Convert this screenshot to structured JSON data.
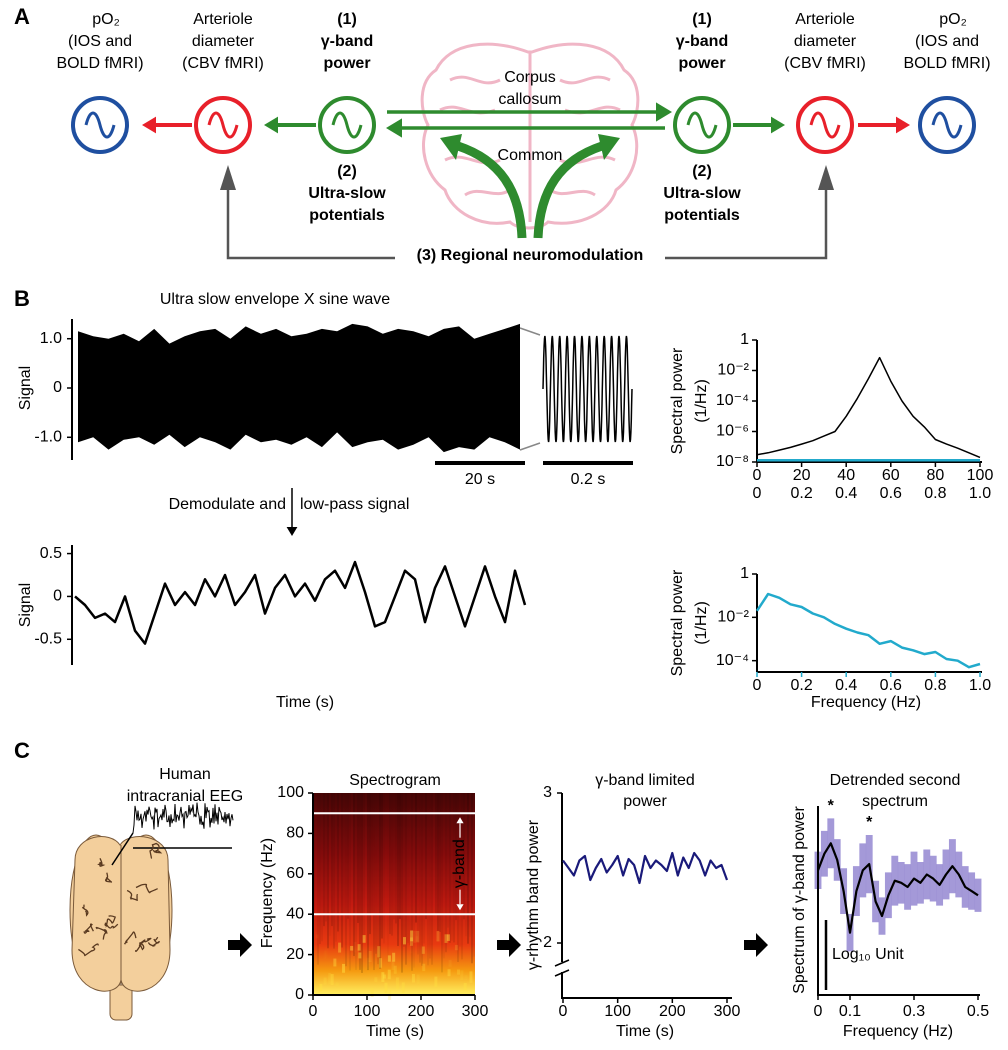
{
  "panel_labels": [
    "A",
    "B",
    "C"
  ],
  "diagram": {
    "nodes": [
      {
        "lines": [
          "pO₂",
          "(IOS and",
          "BOLD fMRI)"
        ],
        "color": "#1f4fa0",
        "bold": false
      },
      {
        "lines": [
          "Arteriole",
          "diameter",
          "(CBV fMRI)"
        ],
        "color": "#e8202a",
        "bold": false
      },
      {
        "lines": [
          "(1)",
          "γ-band",
          "power"
        ],
        "below": [
          "(2)",
          "Ultra-slow",
          "potentials"
        ],
        "color": "#2e8b2e",
        "bold": true
      },
      {
        "lines": [
          "(1)",
          "γ-band",
          "power"
        ],
        "below": [
          "(2)",
          "Ultra-slow",
          "potentials"
        ],
        "color": "#2e8b2e",
        "bold": true
      },
      {
        "lines": [
          "Arteriole",
          "diameter",
          "(CBV fMRI)"
        ],
        "color": "#e8202a",
        "bold": false
      },
      {
        "lines": [
          "pO₂",
          "(IOS and",
          "BOLD fMRI)"
        ],
        "color": "#1f4fa0",
        "bold": false
      }
    ],
    "callosum_label": [
      "Corpus",
      "callosum"
    ],
    "common_label": "Common",
    "neuromodulation_label": "(3) Regional neuromodulation"
  },
  "eeg": {
    "title": [
      "Human",
      "intracranial EEG"
    ]
  },
  "chart_data": [
    {
      "type": "envelope",
      "title": "Ultra slow envelope X sine wave",
      "y_label": "Signal",
      "color": "#000000",
      "ylim": [
        -1.4,
        1.4
      ],
      "yticks": [
        {
          "value": 1,
          "label": "1.0"
        },
        0,
        {
          "value": -1,
          "label": "-1.0"
        }
      ],
      "upper": [
        1.15,
        1.05,
        1.0,
        1.1,
        0.95,
        1.2,
        0.9,
        1.05,
        1.15,
        1.2,
        1.0,
        1.25,
        1.1,
        1.2,
        1.05,
        1.1,
        1.2,
        1.15,
        1.3,
        1.25,
        1.1,
        1.2,
        1.15,
        1.05,
        1.2,
        1.25,
        1.0,
        1.1,
        1.2,
        1.3
      ],
      "lower": [
        -1.1,
        -1.0,
        -1.25,
        -1.05,
        -1.0,
        -1.15,
        -0.95,
        -1.2,
        -1.0,
        -1.1,
        -1.25,
        -0.95,
        -1.1,
        -1.05,
        -1.15,
        -1.0,
        -1.2,
        -0.9,
        -1.2,
        -1.1,
        -1.05,
        -1.25,
        -1.15,
        -1.0,
        -1.3,
        -1.2,
        -1.25,
        -1.0,
        -1.1,
        -1.25
      ],
      "scale_bars": [
        "20 s",
        "0.2 s"
      ],
      "annotation": [
        "Demodulate and",
        "low-pass signal"
      ]
    },
    {
      "type": "line",
      "y_label": "Signal",
      "x_label": "Time (s)",
      "color": "#000000",
      "ylim": [
        -0.8,
        0.6
      ],
      "yticks": [
        0.5,
        0,
        -0.5
      ],
      "values": [
        0,
        -0.1,
        -0.25,
        -0.2,
        -0.3,
        0.0,
        -0.4,
        -0.55,
        -0.2,
        0.15,
        -0.1,
        0.05,
        -0.1,
        0.2,
        0.0,
        0.25,
        -0.1,
        0.05,
        0.25,
        -0.2,
        0.1,
        0.25,
        0.0,
        0.15,
        -0.05,
        0.2,
        0.3,
        0.1,
        0.4,
        0.05,
        -0.35,
        -0.3,
        0.0,
        0.3,
        0.2,
        -0.3,
        0.1,
        0.35,
        0.0,
        -0.35,
        0.0,
        0.35,
        0.0,
        -0.3,
        0.3,
        -0.1
      ]
    },
    {
      "type": "spectrum",
      "y_label": [
        "Spectral power",
        "(1/Hz)"
      ],
      "log_y": true,
      "ylim": [
        1e-08,
        1
      ],
      "yticks": [
        1,
        {
          "value": 0.01,
          "label": "10⁻²"
        },
        {
          "value": 0.0001,
          "label": "10⁻⁴"
        },
        {
          "value": 1e-06,
          "label": "10⁻⁶"
        },
        {
          "value": 1e-08,
          "label": "10⁻⁸"
        }
      ],
      "xlim": [
        0,
        100
      ],
      "xticks": [
        0,
        20,
        40,
        60,
        80,
        100
      ],
      "x2lim": [
        0,
        1
      ],
      "x2ticks": [
        0,
        0.2,
        0.4,
        0.6,
        0.8,
        {
          "value": 1,
          "label": "1.0"
        }
      ],
      "series": [
        {
          "color": "#000000",
          "x": [
            0,
            5,
            10,
            15,
            20,
            25,
            30,
            35,
            40,
            45,
            50,
            55,
            60,
            65,
            70,
            75,
            80,
            85,
            90,
            95,
            100
          ],
          "values": [
            3e-08,
            4e-08,
            6e-08,
            9e-08,
            1.5e-07,
            2.5e-07,
            5e-07,
            1e-06,
            1e-05,
            0.00015,
            0.003,
            0.07,
            0.002,
            0.0001,
            1e-05,
            2e-06,
            3e-07,
            1.5e-07,
            8e-08,
            4e-08,
            2e-08
          ]
        },
        {
          "color": "#22aacc",
          "axis": "x2",
          "x": [
            0,
            1
          ],
          "values": [
            1.3e-08,
            1.3e-08
          ]
        }
      ]
    },
    {
      "type": "spectrum",
      "y_label": [
        "Spectral power",
        "(1/Hz)"
      ],
      "x_label": "Frequency (Hz)",
      "log_y": true,
      "ylim": [
        3e-05,
        1
      ],
      "yticks": [
        1,
        {
          "value": 0.01,
          "label": "10⁻²"
        },
        {
          "value": 0.0001,
          "label": "10⁻⁴"
        }
      ],
      "xlim": [
        0,
        1
      ],
      "xticks": [
        0,
        0.2,
        0.4,
        0.6,
        0.8,
        {
          "value": 1,
          "label": "1.0"
        }
      ],
      "series": [
        {
          "color": "#22aacc",
          "x": [
            0,
            0.05,
            0.1,
            0.15,
            0.2,
            0.25,
            0.3,
            0.35,
            0.4,
            0.45,
            0.5,
            0.55,
            0.6,
            0.65,
            0.7,
            0.75,
            0.8,
            0.85,
            0.9,
            0.95,
            1
          ],
          "values": [
            0.02,
            0.12,
            0.08,
            0.04,
            0.03,
            0.015,
            0.01,
            0.005,
            0.003,
            0.002,
            0.0015,
            0.0006,
            0.0008,
            0.0004,
            0.0003,
            0.0002,
            0.00025,
            0.00012,
            0.0001,
            5e-05,
            7e-05
          ]
        }
      ]
    },
    {
      "type": "spectrogram",
      "title": "Spectrogram",
      "y_label": "Frequency (Hz)",
      "x_label": "Time (s)",
      "ylim": [
        0,
        100
      ],
      "yticks": [
        0,
        20,
        40,
        60,
        80,
        100
      ],
      "xlim": [
        0,
        300
      ],
      "xticks": [
        0,
        100,
        200,
        300
      ],
      "band": [
        40,
        90
      ],
      "band_label": "γ-band"
    },
    {
      "type": "line",
      "title": [
        "γ-band limited",
        "power"
      ],
      "y_label": "γ-rhythm band power",
      "x_label": "Time (s)",
      "color": "#1a1a7a",
      "ylim": [
        2,
        3
      ],
      "yticks": [
        2,
        3
      ],
      "xlim": [
        0,
        300
      ],
      "xticks": [
        0,
        100,
        200,
        300
      ],
      "x": [
        0,
        10,
        20,
        30,
        40,
        50,
        60,
        70,
        80,
        90,
        100,
        110,
        120,
        130,
        140,
        150,
        160,
        170,
        180,
        190,
        200,
        210,
        220,
        230,
        240,
        250,
        260,
        270,
        280,
        290,
        300
      ],
      "values": [
        2.55,
        2.5,
        2.45,
        2.55,
        2.58,
        2.42,
        2.5,
        2.56,
        2.47,
        2.52,
        2.58,
        2.45,
        2.56,
        2.52,
        2.4,
        2.58,
        2.5,
        2.55,
        2.52,
        2.48,
        2.6,
        2.45,
        2.57,
        2.5,
        2.6,
        2.55,
        2.45,
        2.55,
        2.5,
        2.52,
        2.42
      ]
    },
    {
      "type": "band",
      "title": [
        "Detrended second",
        "spectrum"
      ],
      "y_label": "Spectrum of γ-band power",
      "x_label": "Frequency (Hz)",
      "color": "#000000",
      "band_color": "#9b8fd4",
      "ylim": [
        2,
        11
      ],
      "xlim": [
        0,
        0.5
      ],
      "xticks": [
        0,
        0.1,
        0.3,
        0.5
      ],
      "x": [
        0,
        0.02,
        0.04,
        0.06,
        0.08,
        0.1,
        0.12,
        0.14,
        0.16,
        0.18,
        0.2,
        0.22,
        0.24,
        0.26,
        0.28,
        0.3,
        0.32,
        0.34,
        0.36,
        0.38,
        0.4,
        0.42,
        0.44,
        0.46,
        0.48,
        0.5
      ],
      "values": [
        8.0,
        8.8,
        9.3,
        8.5,
        7.0,
        5.0,
        7.0,
        8.0,
        8.3,
        6.5,
        5.8,
        6.8,
        7.5,
        7.4,
        7.2,
        7.6,
        7.4,
        7.8,
        7.6,
        7.3,
        7.8,
        8.2,
        7.8,
        7.2,
        7.0,
        6.8
      ],
      "errors": [
        0.9,
        1.1,
        1.2,
        1.0,
        1.1,
        0.9,
        1.2,
        1.3,
        1.4,
        1.0,
        0.9,
        1.1,
        1.2,
        1.0,
        1.1,
        1.3,
        1.0,
        1.2,
        1.1,
        1.0,
        1.2,
        1.3,
        1.1,
        1.0,
        0.9,
        0.8
      ],
      "annotations": [
        {
          "text": "*",
          "x": 0.04
        },
        {
          "text": "*",
          "x": 0.16
        }
      ],
      "scale_label": "Log₁₀ Unit"
    }
  ]
}
